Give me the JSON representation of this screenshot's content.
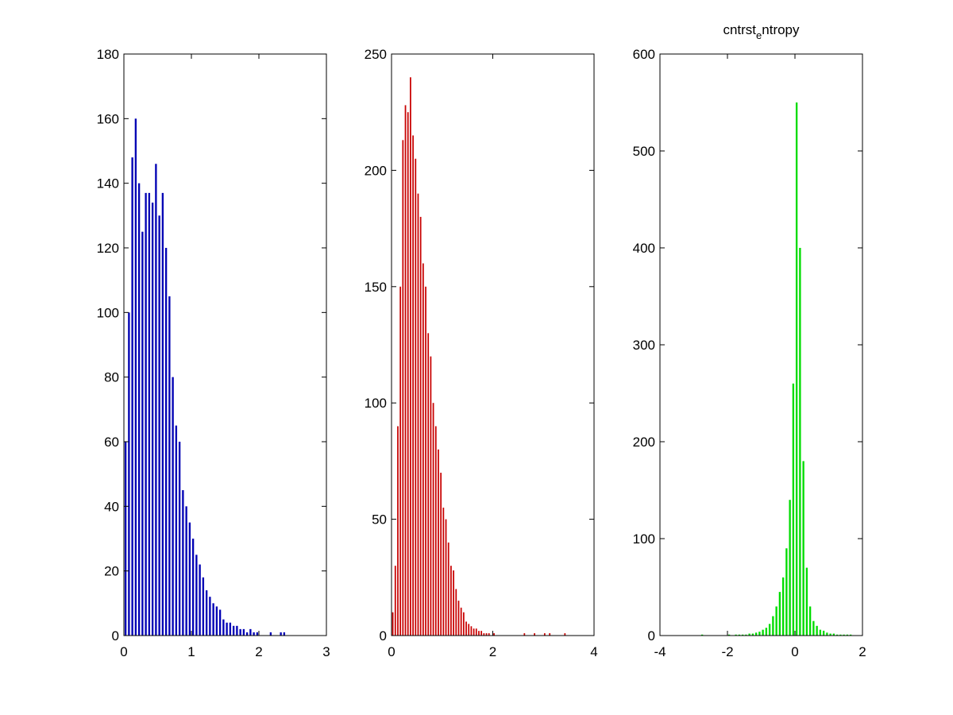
{
  "chart_data": [
    {
      "type": "histogram",
      "color": "#0000b4",
      "bins": [
        0,
        0.05,
        0.1,
        0.15,
        0.2,
        0.25,
        0.3,
        0.35,
        0.4,
        0.45,
        0.5,
        0.55,
        0.6,
        0.65,
        0.7,
        0.75,
        0.8,
        0.85,
        0.9,
        0.95,
        1,
        1.05,
        1.1,
        1.15,
        1.2,
        1.25,
        1.3,
        1.35,
        1.4,
        1.45,
        1.5,
        1.55,
        1.6,
        1.65,
        1.7,
        1.75,
        1.8,
        1.85,
        1.9,
        1.95,
        2,
        2.05,
        2.1,
        2.15,
        2.2,
        2.25,
        2.3,
        2.35,
        2.4,
        2.45,
        2.5
      ],
      "values": [
        60,
        100,
        148,
        160,
        140,
        125,
        137,
        137,
        134,
        146,
        130,
        137,
        120,
        105,
        80,
        65,
        60,
        45,
        40,
        35,
        30,
        25,
        22,
        18,
        14,
        12,
        10,
        9,
        8,
        5,
        4,
        4,
        3,
        3,
        2,
        2,
        1,
        2,
        1,
        1,
        0,
        0,
        0,
        1,
        0,
        0,
        1,
        1,
        0,
        0
      ],
      "xlim": [
        0,
        3
      ],
      "xticks": [
        0,
        1,
        2,
        3
      ],
      "ylim": [
        0,
        180
      ],
      "yticks": [
        0,
        20,
        40,
        60,
        80,
        100,
        120,
        140,
        160,
        180
      ]
    },
    {
      "type": "histogram",
      "color": "#c80000",
      "bins": [
        0,
        0.05,
        0.1,
        0.15,
        0.2,
        0.25,
        0.3,
        0.35,
        0.4,
        0.45,
        0.5,
        0.55,
        0.6,
        0.65,
        0.7,
        0.75,
        0.8,
        0.85,
        0.9,
        0.95,
        1,
        1.05,
        1.1,
        1.15,
        1.2,
        1.25,
        1.3,
        1.35,
        1.4,
        1.45,
        1.5,
        1.55,
        1.6,
        1.65,
        1.7,
        1.75,
        1.8,
        1.85,
        1.9,
        1.95,
        2,
        2.05,
        2.1,
        2.15,
        2.2,
        2.25,
        2.3,
        2.35,
        2.4,
        2.45,
        2.5,
        2.55,
        2.6,
        2.65,
        2.7,
        2.75,
        2.8,
        2.85,
        2.9,
        2.95,
        3,
        3.05,
        3.1,
        3.15,
        3.2,
        3.25,
        3.3,
        3.35,
        3.4,
        3.45,
        3.5
      ],
      "values": [
        10,
        30,
        90,
        150,
        213,
        228,
        225,
        240,
        215,
        205,
        190,
        180,
        160,
        150,
        130,
        120,
        100,
        90,
        80,
        70,
        55,
        50,
        40,
        30,
        28,
        20,
        15,
        12,
        10,
        6,
        5,
        4,
        3,
        3,
        2,
        2,
        1,
        1,
        1,
        0,
        1,
        0,
        0,
        0,
        0,
        0,
        0,
        0,
        0,
        0,
        0,
        0,
        1,
        0,
        0,
        0,
        1,
        0,
        0,
        0,
        1,
        0,
        1,
        0,
        0,
        0,
        0,
        0,
        1,
        0
      ],
      "xlim": [
        0,
        4
      ],
      "xticks": [
        0,
        2,
        4
      ],
      "ylim": [
        0,
        250
      ],
      "yticks": [
        0,
        50,
        100,
        150,
        200,
        250
      ]
    },
    {
      "type": "histogram",
      "color": "#00dc00",
      "title": "cntrst_entropy",
      "bins": [
        -2.8,
        -2.7,
        -2.6,
        -2.5,
        -2.4,
        -2.3,
        -2.2,
        -2.1,
        -2,
        -1.9,
        -1.8,
        -1.7,
        -1.6,
        -1.5,
        -1.4,
        -1.3,
        -1.2,
        -1.1,
        -1,
        -0.9,
        -0.8,
        -0.7,
        -0.6,
        -0.5,
        -0.4,
        -0.3,
        -0.2,
        -0.1,
        0,
        0.1,
        0.2,
        0.3,
        0.4,
        0.5,
        0.6,
        0.7,
        0.8,
        0.9,
        1,
        1.1,
        1.2,
        1.3,
        1.4,
        1.5,
        1.6,
        1.7,
        1.8
      ],
      "values": [
        1,
        0,
        0,
        0,
        0,
        0,
        0,
        0,
        1,
        0,
        1,
        1,
        1,
        1,
        2,
        2,
        3,
        4,
        6,
        8,
        12,
        20,
        30,
        45,
        60,
        90,
        140,
        260,
        550,
        400,
        180,
        70,
        30,
        15,
        10,
        6,
        5,
        3,
        2,
        2,
        1,
        1,
        1,
        1,
        1,
        0
      ],
      "xlim": [
        -4,
        2
      ],
      "xticks": [
        -4,
        -2,
        0,
        2
      ],
      "ylim": [
        0,
        600
      ],
      "yticks": [
        0,
        100,
        200,
        300,
        400,
        500,
        600
      ]
    }
  ]
}
